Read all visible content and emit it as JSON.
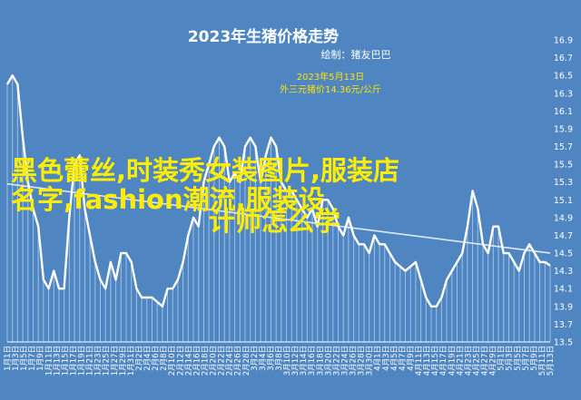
{
  "chart_data": {
    "type": "line",
    "title": "2023年生猪价格走势",
    "subtitle": "绘制：猪友巴巴",
    "annotation": {
      "date": "2023年5月13日",
      "text": "外三元猪价14.36元/公斤",
      "color": "#ffe400"
    },
    "watermark": {
      "lines": [
        "黑色蕾丝,时装秀女装图片,服装店",
        "名字,fashion潮流,服装设",
        "计师怎么学"
      ],
      "color": "#ffee00"
    },
    "y_axis": {
      "position": "right",
      "ylim": [
        13.5,
        16.9
      ],
      "ticks": [
        "16.9",
        "16.7",
        "16.5",
        "16.3",
        "16.1",
        "15.9",
        "15.7",
        "15.5",
        "15.3",
        "15.1",
        "14.9",
        "14.7",
        "14.5",
        "14.3",
        "14.1",
        "13.9",
        "13.7",
        "13.5"
      ]
    },
    "x_axis": {
      "tick_labels": [
        "1月1日",
        "1月3日",
        "1月5日",
        "1月7日",
        "1月9日",
        "1月11日",
        "1月13日",
        "1月15日",
        "1月17日",
        "1月19日",
        "1月21日",
        "1月23日",
        "1月25日",
        "1月27日",
        "1月29日",
        "1月31日",
        "2月2日",
        "2月4日",
        "2月6日",
        "2月8日",
        "2月10日",
        "2月12日",
        "2月14日",
        "2月16日",
        "2月18日",
        "2月20日",
        "2月22日",
        "2月24日",
        "2月26日",
        "2月28日",
        "3月2日",
        "3月4日",
        "3月6日",
        "3月8日",
        "3月10日",
        "3月12日",
        "3月14日",
        "3月16日",
        "3月18日",
        "3月20日",
        "3月22日",
        "3月24日",
        "3月26日",
        "3月28日",
        "3月30日",
        "4月1日",
        "4月3日",
        "4月5日",
        "4月7日",
        "4月9日",
        "4月11日",
        "4月13日",
        "4月15日",
        "4月17日",
        "4月19日",
        "4月21日",
        "4月23日",
        "4月25日",
        "4月27日",
        "4月29日",
        "5月1日",
        "5月3日",
        "5月5日",
        "5月7日",
        "5月9日",
        "5月11日",
        "5月13日"
      ]
    },
    "grid": false,
    "colors": {
      "background": "#4f86c2",
      "line": "#ffffff",
      "trend": "#dfe8f5",
      "drop_lines": "#9fc0e4"
    },
    "series": [
      {
        "values": [
          16.4,
          16.5,
          16.4,
          15.8,
          15.3,
          15.0,
          14.8,
          14.2,
          14.1,
          14.3,
          14.1,
          14.1,
          14.9,
          15.5,
          15.6,
          15.0,
          14.7,
          14.4,
          14.2,
          14.1,
          14.4,
          14.2,
          14.5,
          14.5,
          14.4,
          14.1,
          14.0,
          14.0,
          14.0,
          13.95,
          13.9,
          14.1,
          14.1,
          14.2,
          14.4,
          14.7,
          14.9,
          14.8,
          15.3,
          15.5,
          15.7,
          15.8,
          15.7,
          15.3,
          15.4,
          15.3,
          15.7,
          15.8,
          15.7,
          15.3,
          15.6,
          15.8,
          15.7,
          15.3,
          15.2,
          15.2,
          15.1,
          15.0,
          14.9,
          15.0,
          14.8,
          15.1,
          15.1,
          15.0,
          14.8,
          14.7,
          14.9,
          14.7,
          14.6,
          14.6,
          14.5,
          14.7,
          14.6,
          14.6,
          14.5,
          14.4,
          14.35,
          14.3,
          14.35,
          14.4,
          14.2,
          14.0,
          13.9,
          13.9,
          14.0,
          14.2,
          14.3,
          14.4,
          14.5,
          14.8,
          15.2,
          15.0,
          14.6,
          14.5,
          14.8,
          14.8,
          14.5,
          14.5,
          14.4,
          14.3,
          14.5,
          14.6,
          14.5,
          14.4,
          14.4,
          14.36
        ],
        "trend": [
          15.28,
          14.5
        ]
      }
    ]
  }
}
